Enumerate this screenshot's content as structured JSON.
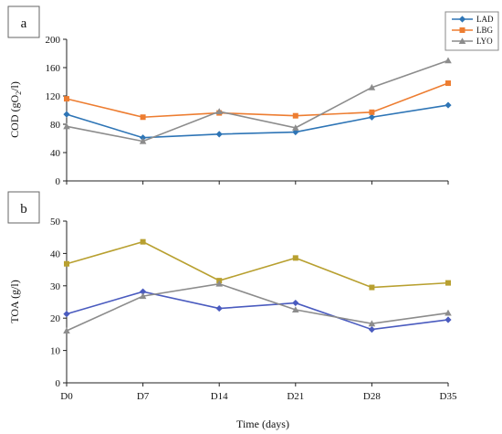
{
  "chart_data": [
    {
      "type": "line",
      "panel_label": "a",
      "ylabel": "COD (gO2/l)",
      "ylim": [
        0,
        200
      ],
      "yticks": [
        0,
        40,
        80,
        120,
        160,
        200
      ],
      "categories": [
        "D0",
        "D7",
        "D14",
        "D21",
        "D28",
        "D35"
      ],
      "grid": false,
      "legend": "top-right",
      "series": [
        {
          "name": "LAD",
          "color": "#2e75b6",
          "marker": "diamond",
          "values": [
            94,
            61,
            66,
            69,
            90,
            107
          ]
        },
        {
          "name": "LBG",
          "color": "#ed7d31",
          "marker": "square",
          "values": [
            116,
            90,
            96,
            92,
            97,
            138
          ]
        },
        {
          "name": "LYO",
          "color": "#8c8c8c",
          "marker": "triangle",
          "values": [
            77,
            56,
            98,
            75,
            132,
            170
          ]
        }
      ]
    },
    {
      "type": "line",
      "panel_label": "b",
      "ylabel": "TOA (g/l)",
      "xlabel": "Time (days)",
      "ylim": [
        0,
        50
      ],
      "yticks": [
        0,
        10,
        20,
        30,
        40,
        50
      ],
      "categories": [
        "D0",
        "D7",
        "D14",
        "D21",
        "D28",
        "D35"
      ],
      "grid": false,
      "series": [
        {
          "color": "#4a5bbf",
          "marker": "diamond",
          "values": [
            21.3,
            28.2,
            23.0,
            24.7,
            16.5,
            19.5
          ]
        },
        {
          "color": "#b8a030",
          "marker": "square",
          "values": [
            36.8,
            43.6,
            31.6,
            38.6,
            29.5,
            30.9
          ]
        },
        {
          "color": "#8c8c8c",
          "marker": "triangle",
          "values": [
            16.1,
            26.8,
            30.6,
            22.6,
            18.3,
            21.6
          ]
        }
      ]
    }
  ]
}
